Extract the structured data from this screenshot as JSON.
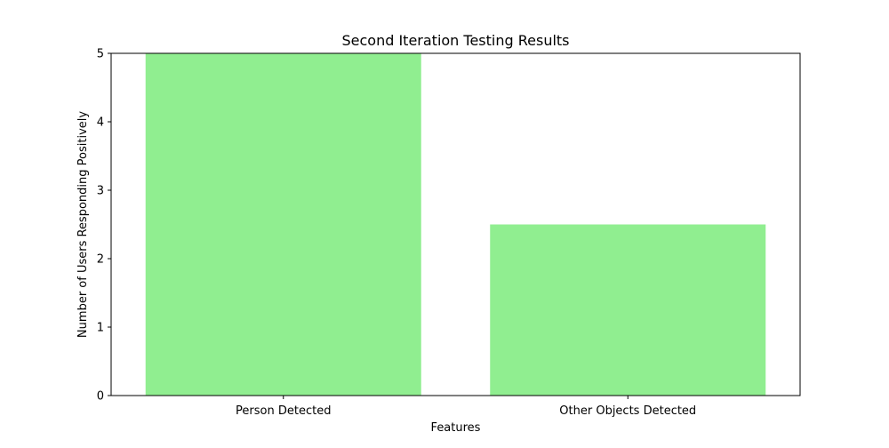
{
  "chart_data": {
    "type": "bar",
    "title": "Second Iteration Testing Results",
    "xlabel": "Features",
    "ylabel": "Number of Users Responding Positively",
    "categories": [
      "Person Detected",
      "Other Objects Detected"
    ],
    "values": [
      5,
      2.5
    ],
    "ylim": [
      0,
      5
    ],
    "yticks": [
      "0",
      "1",
      "2",
      "3",
      "4",
      "5"
    ],
    "bar_color": "#90ee90",
    "grid": false,
    "legend": false
  }
}
